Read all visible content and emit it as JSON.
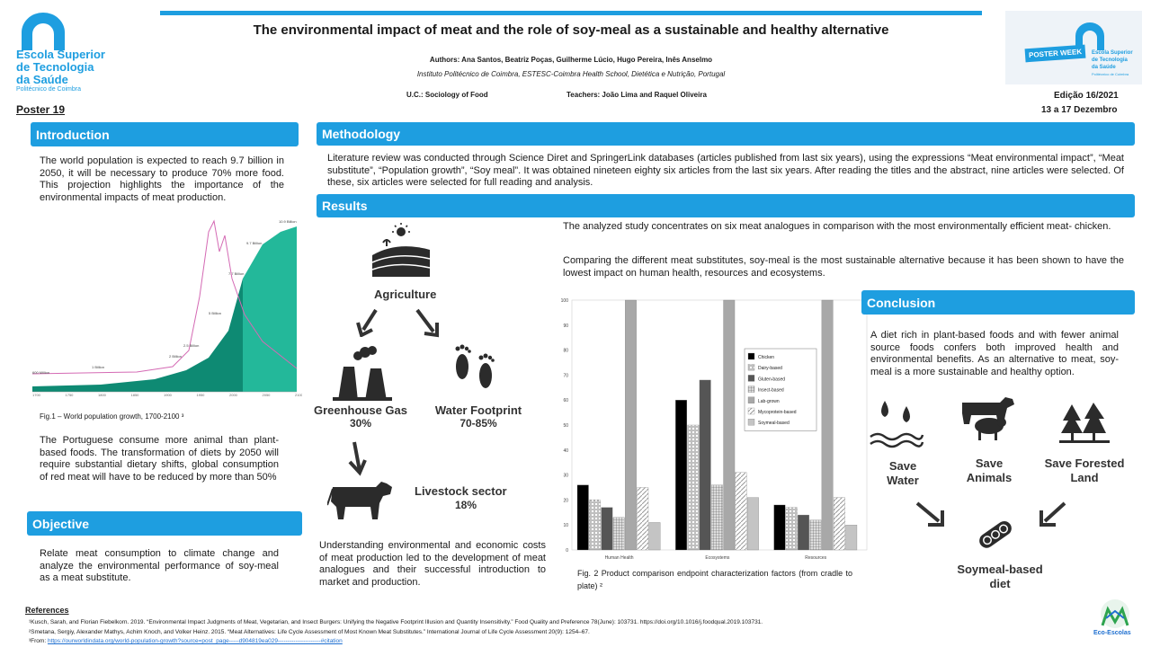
{
  "school": {
    "line1": "Escola Superior",
    "line2": "de Tecnologia",
    "line3": "da Saúde",
    "sub": "Politécnico de Coimbra"
  },
  "poster_label": "Poster 19",
  "title": "The environmental impact of meat and the role of soy-meal as a sustainable and healthy alternative",
  "authors": "Authors: Ana Santos, Beatriz Poças, Guilherme Lúcio, Hugo Pereira, Inês Anselmo",
  "institution": "Instituto Politécnico de Coimbra, ESTESC-Coimbra Health School, Dietética e Nutrição, Portugal",
  "uc": "U.C.: Sociology of Food",
  "teachers": "Teachers: João Lima and Raquel Oliveira",
  "poster_week": {
    "badge": "POSTER WEEK",
    "line1": "Escola Superior",
    "line2": "de Tecnologia",
    "line3": "da Saúde",
    "sub": "Politécnico de Coimbra"
  },
  "edition": "Edição 16/2021",
  "dates": "13 a 17 Dezembro",
  "introduction": {
    "heading": "Introduction",
    "p1": "The world population is expected to reach 9.7 billion in 2050, it will be necessary to produce 70% more food. This projection highlights the importance of the environmental impacts of meat production.",
    "fig_caption": "Fig.1 – World population growth, 1700-2100 ³",
    "p2": "The Portuguese consume more animal than plant-based foods. The transformation of diets by 2050 will require substantial dietary shifts, global consumption of red meat will have to be reduced by more than 50%"
  },
  "objective": {
    "heading": "Objective",
    "text": "Relate meat consumption to climate change and analyze the environmental performance of soy-meal as a meat substitute."
  },
  "methodology": {
    "heading": "Methodology",
    "text": "Literature review was conducted through Science Diret and SpringerLink databases (articles published from last six years), using the expressions “Meat environmental impact”, “Meat substitute”, “Population growth”, “Soy meal”. It was obtained nineteen eighty six articles from the last six years. After reading the titles and the abstract, nine articles were selected. Of these, six articles were selected for full reading and analysis."
  },
  "results": {
    "heading": "Results",
    "agriculture": "Agriculture",
    "ghg_label": "Greenhouse Gas",
    "ghg_value": "30%",
    "water_label": "Water Footprint",
    "water_value": "70-85%",
    "livestock_label": "Livestock sector",
    "livestock_value": "18%",
    "p_left": "Understanding environmental and economic costs of meat production led to the development of meat analogues and their successful introduction to market and production.",
    "p1": "The analyzed study concentrates on six meat analogues in comparison with the most environmentally efficient meat- chicken.",
    "p2": "Comparing the different meat substitutes, soy-meal is the most sustainable alternative because it has been shown to have the lowest impact on human health, resources and ecosystems.",
    "fig2_caption": "Fig. 2 Product comparison endpoint characterization factors (from cradle to plate) ²"
  },
  "conclusion": {
    "heading": "Conclusion",
    "text": "A diet rich in plant-based foods and with fewer animal source foods confers both improved health and environmental benefits. As an alternative to meat, soy-meal is a more sustainable and healthy option.",
    "save_water": "Save Water",
    "save_animals": "Save Animals",
    "save_land": "Save Forested Land",
    "soymeal": "Soymeal-based diet"
  },
  "references": {
    "heading": "References",
    "r1": "¹Kusch, Sarah, and Florian Fiebelkorn. 2019. “Environmental Impact Judgments of Meat, Vegetarian, and Insect Burgers: Unifying the Negative Footprint Illusion and Quantity Insensitivity.” Food Quality and Preference 78(June): 103731. https://doi.org/10.1016/j.foodqual.2019.103731.",
    "r2": "²Smetana, Sergiy, Alexander Mathys, Achim Knoch, and Volker Heinz. 2015. “Meat Alternatives: Life Cycle Assessment of Most Known Meat Substitutes.” International Journal of Life Cycle Assessment 20(9): 1254–67.",
    "r3_prefix": "³From:",
    "r3_link": "https://ourworldindata.org/world-population-growth?source=post_page-----d904819ea029----------------------#citation"
  },
  "eco": "Eco-Escolas",
  "colors": {
    "accent": "#1e9ee0",
    "teal_dark": "#0e8a73",
    "teal_light": "#23b89a",
    "pink": "#d46ab4"
  },
  "chart_data": {
    "type": "bar",
    "categories": [
      "Human Health",
      "Ecosystems",
      "Resources"
    ],
    "ylim": [
      0,
      100
    ],
    "yticks": [
      0,
      10,
      20,
      30,
      40,
      50,
      60,
      70,
      80,
      90,
      100
    ],
    "legend_position": "right",
    "series": [
      {
        "name": "Chicken",
        "values": [
          26,
          60,
          18
        ]
      },
      {
        "name": "Dairy-based",
        "values": [
          20,
          50,
          17
        ]
      },
      {
        "name": "Gluten-based",
        "values": [
          17,
          68,
          14
        ]
      },
      {
        "name": "Insect-based",
        "values": [
          13,
          26,
          12
        ]
      },
      {
        "name": "Lab-grown",
        "values": [
          100,
          100,
          100
        ]
      },
      {
        "name": "Mycoprotein-based",
        "values": [
          25,
          31,
          21
        ]
      },
      {
        "name": "Soymeal-based",
        "values": [
          11,
          21,
          10
        ]
      }
    ]
  },
  "pop_chart": {
    "labels": [
      "600 Million",
      "1 Billion",
      "2 Billion",
      "2.5 Billion",
      "5 Billion",
      "7.7 Billion",
      "9.7 Billion",
      "10.9 Billion"
    ],
    "xticks": [
      "1700",
      "1750",
      "1800",
      "1850",
      "1900",
      "1950",
      "2000",
      "2050",
      "2100"
    ]
  }
}
